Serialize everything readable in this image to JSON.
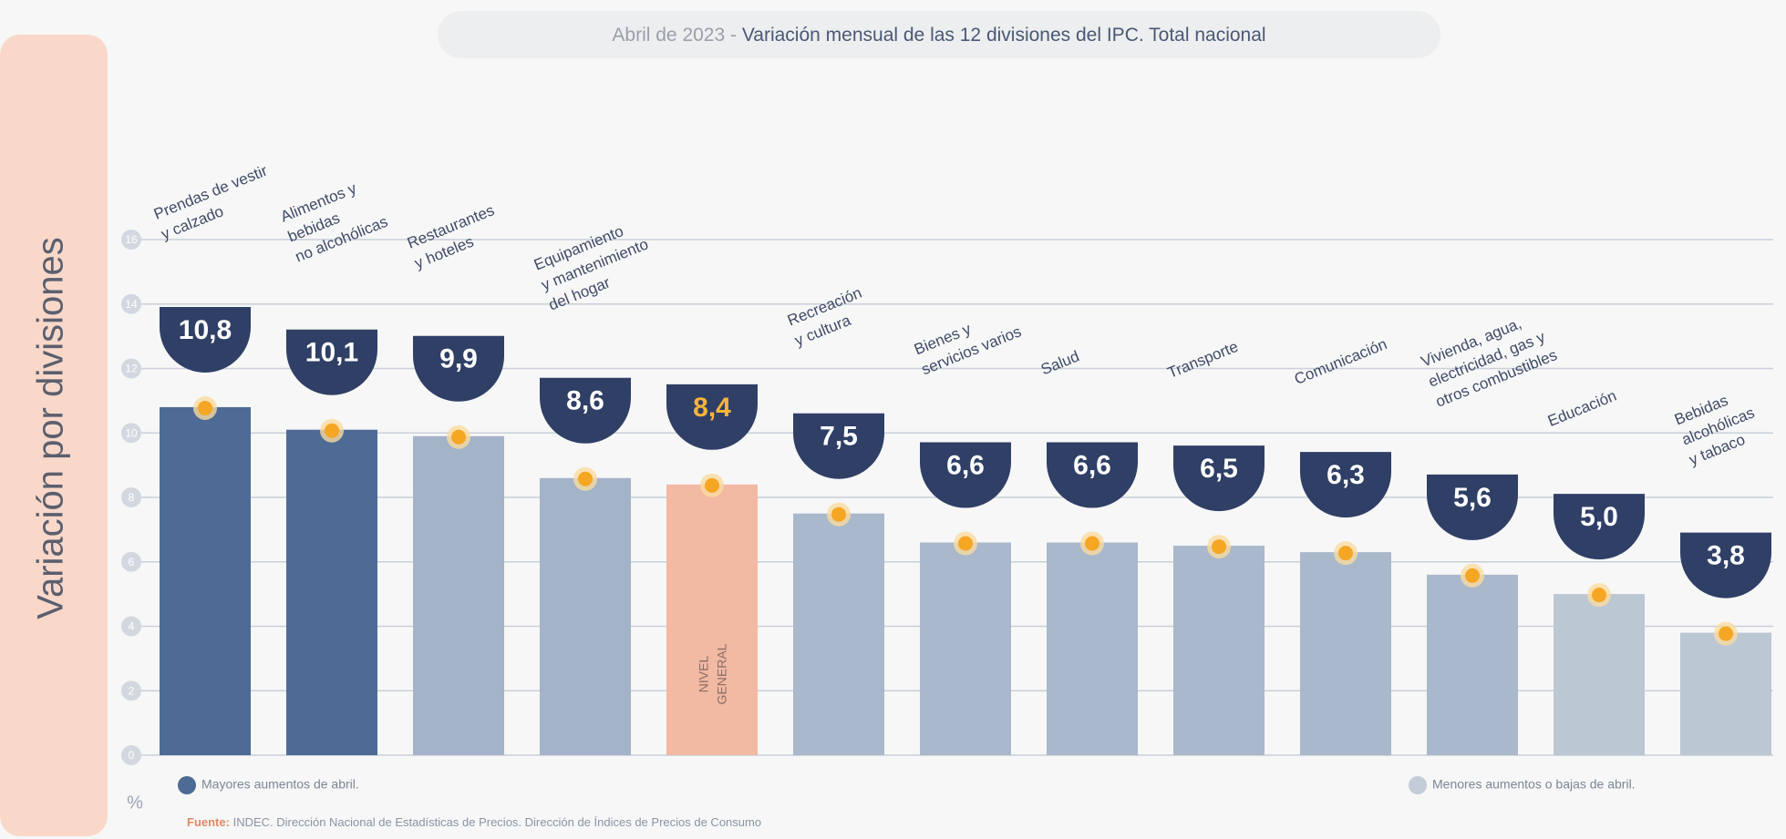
{
  "chart_data": {
    "type": "bar",
    "title_prefix": "Abril de 2023 -",
    "title": "Variación mensual de las 12 divisiones del IPC. Total nacional",
    "y_label": "Variación por divisiones",
    "unit": "%",
    "categories": [
      [
        "Prendas de vestir",
        "y calzado"
      ],
      [
        "Alimentos y",
        "bebidas",
        "no alcohólicas"
      ],
      [
        "Restaurantes",
        "y hoteles"
      ],
      [
        "Equipamiento",
        "y mantenimiento",
        "del hogar"
      ],
      [],
      [
        "Recreación",
        "y cultura"
      ],
      [
        "Bienes y",
        "servicios varios"
      ],
      [
        "Salud"
      ],
      [
        "Transporte"
      ],
      [
        "Comunicación"
      ],
      [
        "Vivienda, agua,",
        "electricidad, gas y",
        "otros combustibles"
      ],
      [
        "Educación"
      ],
      [
        "Bebidas",
        "alcohólicas",
        "y tabaco"
      ]
    ],
    "values": [
      10.8,
      10.1,
      9.9,
      8.6,
      8.4,
      7.5,
      6.6,
      6.6,
      6.5,
      6.3,
      5.6,
      5.0,
      3.8
    ],
    "value_labels": [
      "10,8",
      "10,1",
      "9,9",
      "8,6",
      "8,4",
      "7,5",
      "6,6",
      "6,6",
      "6,5",
      "6,3",
      "5,6",
      "5,0",
      "3,8"
    ],
    "colors": [
      "#4d6b95",
      "#4d6b95",
      "#a3b3c8",
      "#a3b3c8",
      "#f2b9a3",
      "#a9b8cb",
      "#a9b8cb",
      "#a9b8cb",
      "#a9b8cb",
      "#a9b8cb",
      "#a9b8cb",
      "#bcc7d4",
      "#bcc7d4"
    ],
    "highlight_index": 4,
    "highlight_label": [
      "NIVEL",
      "GENERAL"
    ],
    "ylim": [
      0,
      16
    ],
    "yticks": [
      0,
      2,
      4,
      6,
      8,
      10,
      12,
      14,
      16
    ],
    "grid": true,
    "legend": [
      {
        "label": "Mayores aumentos de abril.",
        "color": "#4d6b95"
      },
      {
        "label": "Menores aumentos o bajas de abril.",
        "color": "#c3ccd7"
      }
    ],
    "source_prefix": "Fuente:",
    "source": "INDEC. Dirección Nacional de Estadísticas de Precios. Dirección de Índices de Precios de Consumo"
  }
}
